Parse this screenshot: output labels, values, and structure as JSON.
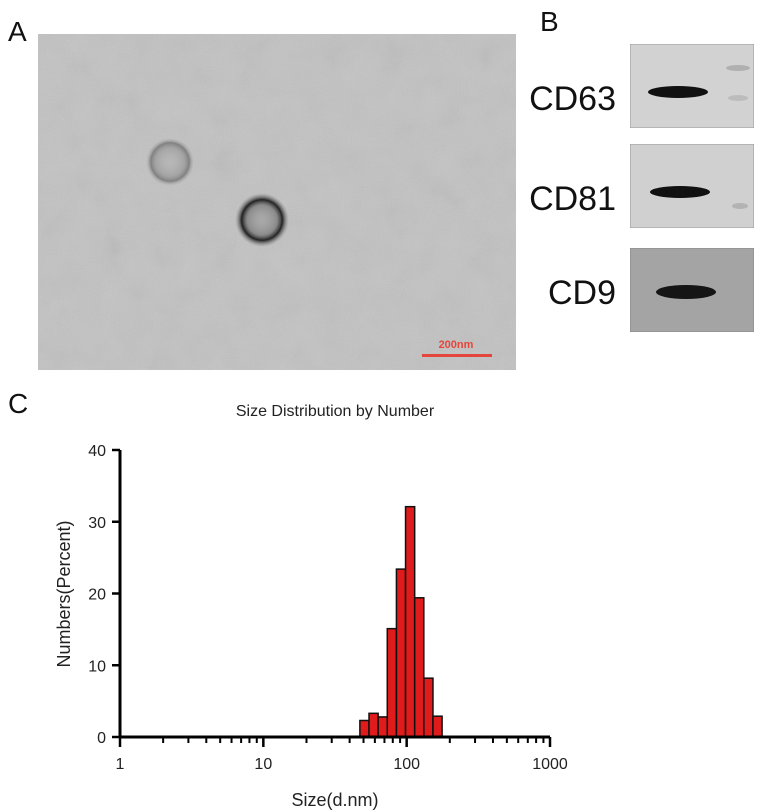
{
  "panels": {
    "a": "A",
    "b": "B",
    "c": "C"
  },
  "tem": {
    "scale_bar_label": "200nm",
    "scale_bar_color": "#e5463b"
  },
  "western_blot": {
    "bands": [
      {
        "label": "CD63"
      },
      {
        "label": "CD81"
      },
      {
        "label": "CD9"
      }
    ]
  },
  "chart_data": {
    "type": "bar",
    "title": "Size Distribution by Number",
    "xlabel": "Size(d.nm)",
    "ylabel": "Numbers(Percent)",
    "x_scale": "log",
    "xlim": [
      1,
      1000
    ],
    "ylim": [
      0,
      40
    ],
    "x_ticks": [
      1,
      10,
      100,
      1000
    ],
    "x_tick_labels": [
      "1",
      "10",
      "100",
      "1000"
    ],
    "y_ticks": [
      0,
      10,
      20,
      30,
      40
    ],
    "y_tick_labels": [
      "0",
      "10",
      "20",
      "30",
      "40"
    ],
    "bar_color": "#e01b1b",
    "bar_edge_color": "#111111",
    "bars": [
      {
        "size": 50.75,
        "percent": 2.3
      },
      {
        "size": 58.77,
        "percent": 3.3
      },
      {
        "size": 68.06,
        "percent": 2.8
      },
      {
        "size": 78.82,
        "percent": 15.1
      },
      {
        "size": 91.28,
        "percent": 23.4
      },
      {
        "size": 105.7,
        "percent": 32.1
      },
      {
        "size": 122.4,
        "percent": 19.4
      },
      {
        "size": 141.8,
        "percent": 8.2
      },
      {
        "size": 164.2,
        "percent": 2.9
      }
    ]
  }
}
